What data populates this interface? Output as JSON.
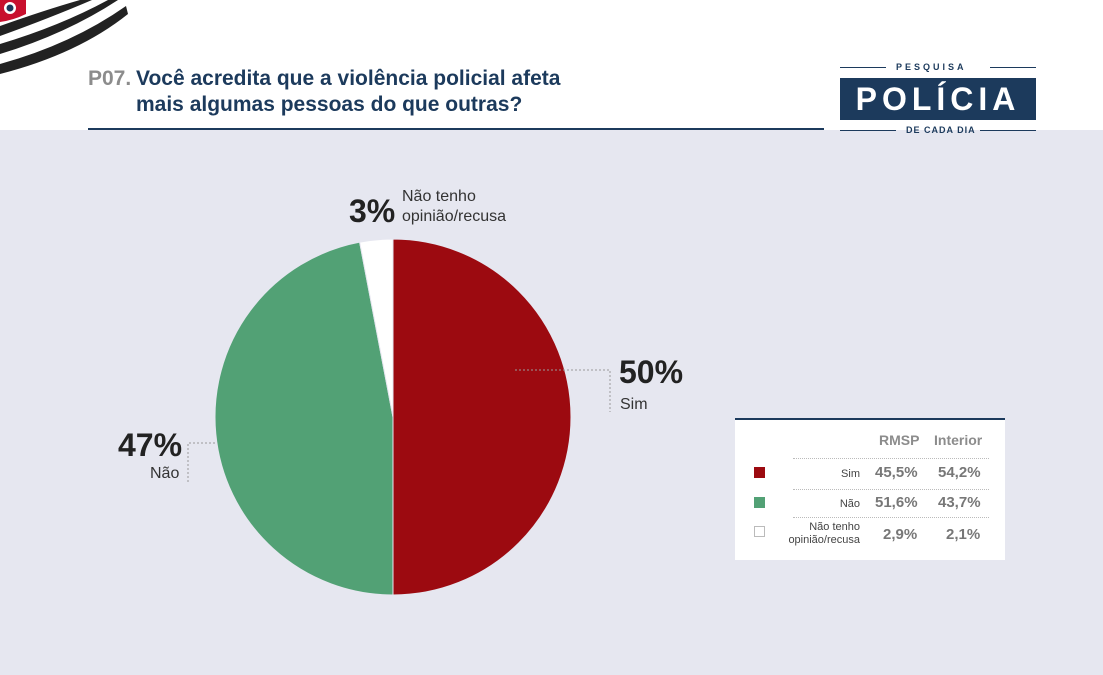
{
  "header": {
    "question_code": "P07.",
    "question_line1": "Você acredita que a violência policial afeta",
    "question_line2": "mais algumas pessoas do que outras?"
  },
  "logo": {
    "top_text": "PESQUISA",
    "main_text": "POLÍCIA",
    "bottom_text": "DE CADA DIA"
  },
  "colors": {
    "sim": "#9c0a10",
    "nao": "#52a175",
    "nao_tenho": "#ffffff",
    "navy": "#1c3a5c"
  },
  "chart_data": {
    "type": "pie",
    "slices": [
      {
        "name": "Sim",
        "value": 50,
        "label": "50%",
        "color": "#9c0a10"
      },
      {
        "name": "Não",
        "value": 47,
        "label": "47%",
        "color": "#52a175"
      },
      {
        "name": "Não tenho opinião/recusa",
        "value": 3,
        "label": "3%",
        "color": "#ffffff"
      }
    ],
    "slice_text": {
      "sim": "Sim",
      "nao": "Não",
      "nao_tenho_line1": "Não tenho",
      "nao_tenho_line2": "opinião/recusa"
    },
    "table": {
      "headers": [
        "RMSP",
        "Interior"
      ],
      "rows": [
        {
          "label_lines": [
            "Sim"
          ],
          "rmsp": "45,5%",
          "interior": "54,2%",
          "color": "#9c0a10"
        },
        {
          "label_lines": [
            "Não"
          ],
          "rmsp": "51,6%",
          "interior": "43,7%",
          "color": "#52a175"
        },
        {
          "label_lines": [
            "Não tenho",
            "opinião/recusa"
          ],
          "rmsp": "2,9%",
          "interior": "2,1%",
          "color": "#ffffff"
        }
      ]
    }
  }
}
